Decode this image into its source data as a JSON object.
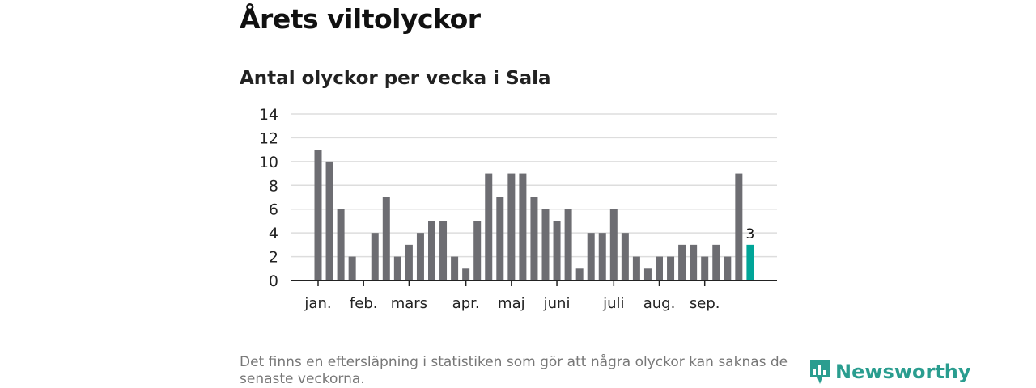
{
  "header": {
    "title": "Årets viltolyckor",
    "subtitle": "Antal olyckor per vecka i Sala"
  },
  "footer": {
    "note": "Det finns en eftersläpning i statistiken som gör att några olyckor kan saknas de senaste veckorna.",
    "logo": "Newsworthy"
  },
  "colors": {
    "bar": "#6d6d72",
    "highlight": "#00a598",
    "grid": "#dddddd",
    "axis": "#222222"
  },
  "chart_data": {
    "type": "bar",
    "title": "Antal olyckor per vecka i Sala",
    "xlabel": "",
    "ylabel": "",
    "ylim": [
      0,
      14
    ],
    "yticks": [
      0,
      2,
      4,
      6,
      8,
      10,
      12,
      14
    ],
    "grid": true,
    "values": [
      11,
      10,
      6,
      2,
      0,
      4,
      7,
      2,
      3,
      4,
      5,
      5,
      2,
      1,
      5,
      9,
      7,
      9,
      9,
      7,
      6,
      5,
      6,
      1,
      4,
      4,
      6,
      4,
      2,
      1,
      2,
      2,
      3,
      3,
      2,
      3,
      2,
      9,
      3
    ],
    "highlight_index": 38,
    "highlight_label": "3",
    "month_ticks": [
      {
        "label": "jan.",
        "week_index": 0
      },
      {
        "label": "feb.",
        "week_index": 4
      },
      {
        "label": "mars",
        "week_index": 8
      },
      {
        "label": "apr.",
        "week_index": 13
      },
      {
        "label": "maj",
        "week_index": 17
      },
      {
        "label": "juni",
        "week_index": 21
      },
      {
        "label": "juli",
        "week_index": 26
      },
      {
        "label": "aug.",
        "week_index": 30
      },
      {
        "label": "sep.",
        "week_index": 34
      }
    ]
  }
}
